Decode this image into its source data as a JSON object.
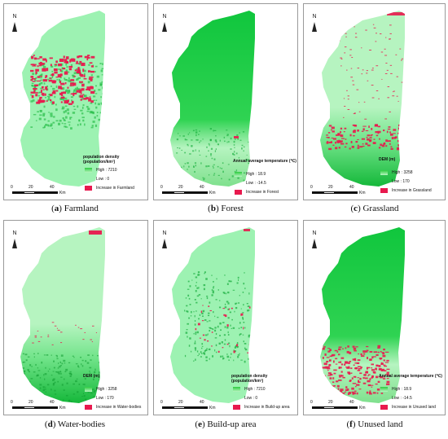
{
  "colors": {
    "high_green": "#10c63d",
    "low_green": "#b6f4c0",
    "base_green": "#9df2b2",
    "increase_red": "#e8194e"
  },
  "north_label": "N",
  "scale_labels": [
    "0",
    "20",
    "40"
  ],
  "scale_unit": "Km",
  "panels": [
    {
      "caption_letter": "a",
      "caption_text": "Farmland",
      "legend_title": "population density (population/km²)",
      "high": "High : 7210",
      "low": "Low : 0",
      "increase": "Increase in Farmland"
    },
    {
      "caption_letter": "b",
      "caption_text": "Forest",
      "legend_title": "Annual average temperature (℃)",
      "high": "High : 18.9",
      "low": "Low : -14.5",
      "increase": "Increase in Forest"
    },
    {
      "caption_letter": "c",
      "caption_text": "Grassland",
      "legend_title": "DEM (m)",
      "high": "High : 3258",
      "low": "Low : 170",
      "increase": "Increase in Grassland"
    },
    {
      "caption_letter": "d",
      "caption_text": "Water-bodies",
      "legend_title": "DEM (m)",
      "high": "High : 3258",
      "low": "Low : 170",
      "increase": "Increase in Water-bodies"
    },
    {
      "caption_letter": "e",
      "caption_text": "Build-up area",
      "legend_title": "population density (population/km²)",
      "high": "High : 7210",
      "low": "Low : 0",
      "increase": "Increase in Build-up area"
    },
    {
      "caption_letter": "f",
      "caption_text": "Unused land",
      "legend_title": "Annual average temperature (℃)",
      "high": "High : 18.9",
      "low": "Low : -14.5",
      "increase": "Increase in Unused land"
    }
  ]
}
